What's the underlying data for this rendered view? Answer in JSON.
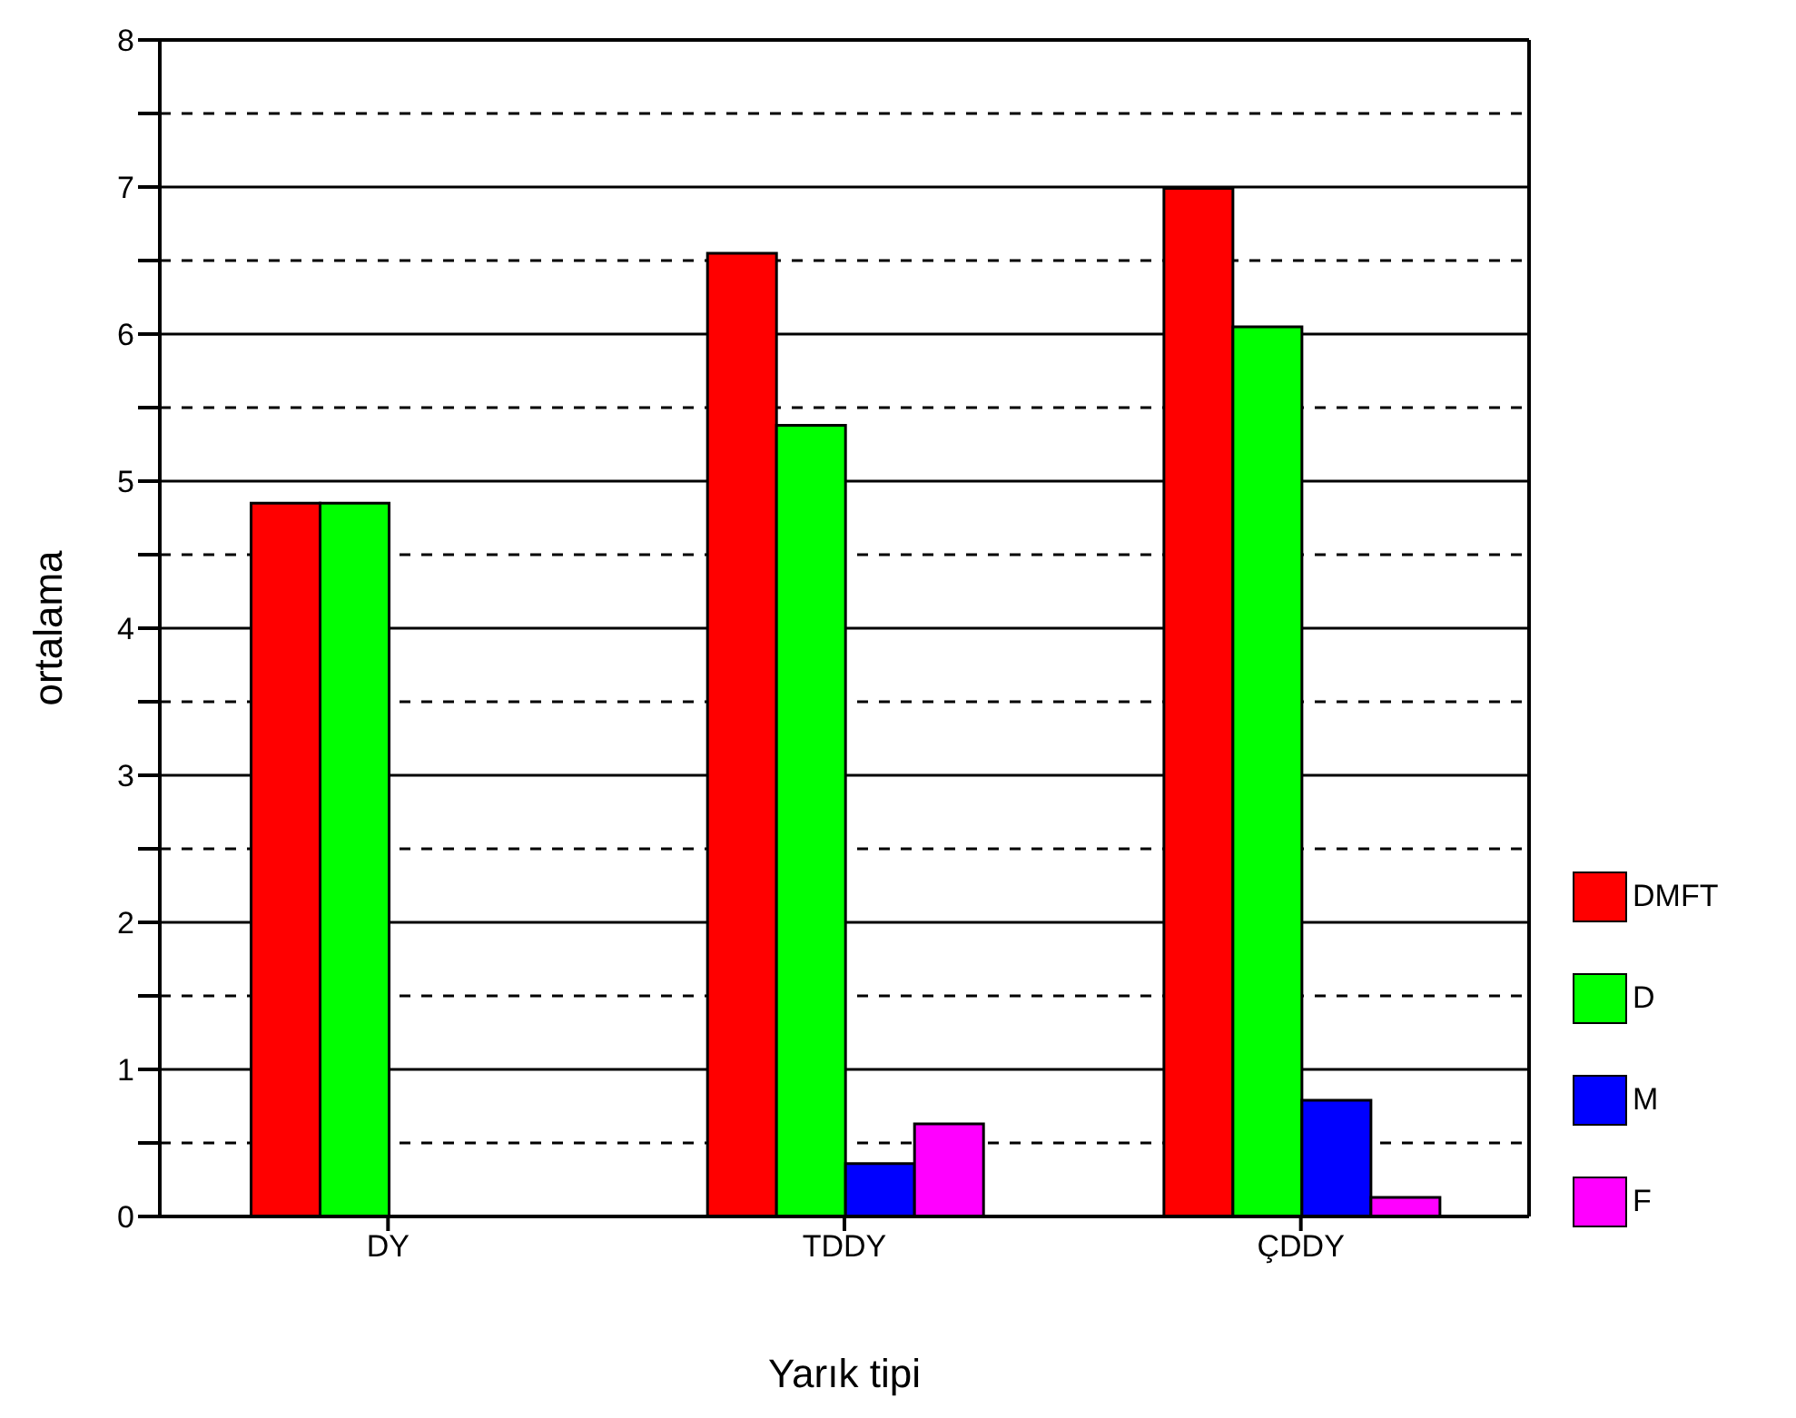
{
  "chart_data": {
    "type": "bar",
    "xlabel": "Yarık tipi",
    "ylabel": "ortalama",
    "categories": [
      "DY",
      "TDDY",
      "ÇDDY"
    ],
    "series": [
      {
        "name": "DMFT",
        "color": "#ff0000",
        "values": [
          4.85,
          6.55,
          6.99
        ]
      },
      {
        "name": "D",
        "color": "#00ff00",
        "values": [
          4.85,
          5.38,
          6.05
        ]
      },
      {
        "name": "M",
        "color": "#0000ff",
        "values": [
          0,
          0.36,
          0.79
        ]
      },
      {
        "name": "F",
        "color": "#ff00ff",
        "values": [
          0,
          0.63,
          0.13
        ]
      }
    ],
    "ylim": [
      0,
      8
    ],
    "yticks": [
      0,
      {
        "value": 0.5,
        "label": null
      },
      1,
      {
        "value": 1.5,
        "label": null
      },
      2,
      {
        "value": 2.5,
        "label": null
      },
      3,
      {
        "value": 3.5,
        "label": null
      },
      4,
      {
        "value": 4.5,
        "label": null
      },
      5,
      {
        "value": 5.5,
        "label": null
      },
      6,
      {
        "value": 6.5,
        "label": null
      },
      7,
      {
        "value": 7.5,
        "label": null
      },
      8
    ],
    "grid": "y",
    "legend": "right"
  }
}
